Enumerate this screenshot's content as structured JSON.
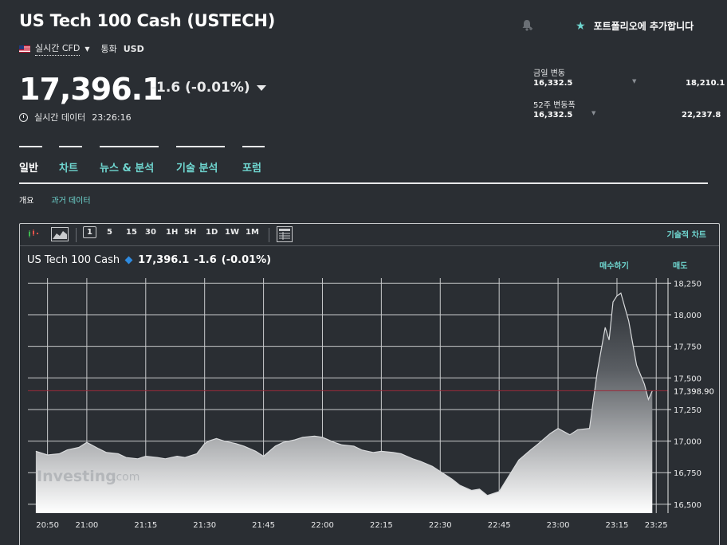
{
  "header": {
    "title": "US Tech 100 Cash (USTECH)",
    "market_type": "실시간 CFD",
    "currency_label": "통화",
    "currency": "USD",
    "price": "17,396.1",
    "change": "-1.6 (-0.01%)",
    "realtime_label": "실시간 데이터",
    "time": "23:26:16",
    "add_portfolio": "포트폴리오에 추가합니다"
  },
  "ranges": {
    "day": {
      "label": "금일 변동",
      "low": "16,332.5",
      "high": "18,210.1"
    },
    "week52": {
      "label": "52주 변동폭",
      "low": "16,332.5",
      "high": "22,237.8"
    }
  },
  "tabs": [
    {
      "label": "일반",
      "active": true
    },
    {
      "label": "차트",
      "active": false
    },
    {
      "label": "뉴스 & 분석",
      "active": false
    },
    {
      "label": "기술 분석",
      "active": false
    },
    {
      "label": "포럼",
      "active": false
    }
  ],
  "subtabs": {
    "overview": "개요",
    "historical": "과거 데이터"
  },
  "toolbar": {
    "intervals": [
      "1",
      "5",
      "15",
      "30",
      "1H",
      "5H",
      "1D",
      "1W",
      "1M"
    ],
    "selected_interval": "1",
    "tech_chart": "기술적 차트"
  },
  "chart_header": {
    "name": "US Tech 100 Cash",
    "price": "17,396.1",
    "change": "-1.6",
    "change_pct": "(-0.01%)",
    "buy": "매수하기",
    "sell": "매도"
  },
  "watermark": "Investing",
  "watermark_suffix": ".com",
  "colors": {
    "background": "#2a2e33",
    "accent": "#6fd6d0",
    "text": "#e8e9ea",
    "current_price_line": "#9b2a3a",
    "diamond": "#2f8be0"
  },
  "chart_data": {
    "type": "area",
    "x": [
      "20:47",
      "20:50",
      "20:53",
      "20:55",
      "20:58",
      "21:00",
      "21:03",
      "21:05",
      "21:08",
      "21:10",
      "21:13",
      "21:15",
      "21:18",
      "21:20",
      "21:23",
      "21:25",
      "21:28",
      "21:30",
      "21:31",
      "21:33",
      "21:35",
      "21:38",
      "21:40",
      "21:43",
      "21:45",
      "21:48",
      "21:50",
      "21:53",
      "21:55",
      "21:58",
      "22:00",
      "22:03",
      "22:05",
      "22:08",
      "22:10",
      "22:13",
      "22:15",
      "22:18",
      "22:20",
      "22:23",
      "22:25",
      "22:28",
      "22:30",
      "22:33",
      "22:35",
      "22:38",
      "22:40",
      "22:42",
      "22:45",
      "22:47",
      "22:50",
      "22:53",
      "22:55",
      "22:58",
      "23:00",
      "23:03",
      "23:05",
      "23:08",
      "23:10",
      "23:12",
      "23:13",
      "23:14",
      "23:15",
      "23:16",
      "23:18",
      "23:20",
      "23:22",
      "23:23",
      "23:24"
    ],
    "y": [
      16920,
      16890,
      16900,
      16930,
      16950,
      16990,
      16940,
      16910,
      16900,
      16870,
      16860,
      16880,
      16870,
      16860,
      16880,
      16870,
      16900,
      16980,
      17000,
      17020,
      17000,
      16980,
      16960,
      16920,
      16880,
      16960,
      16990,
      17010,
      17030,
      17040,
      17030,
      16990,
      16970,
      16960,
      16930,
      16910,
      16920,
      16910,
      16900,
      16860,
      16840,
      16800,
      16760,
      16700,
      16650,
      16610,
      16620,
      16570,
      16600,
      16700,
      16850,
      16930,
      16980,
      17060,
      17100,
      17050,
      17090,
      17100,
      17550,
      17900,
      17800,
      18100,
      18150,
      18170,
      17950,
      17600,
      17450,
      17330,
      17398
    ],
    "xticks": [
      "20:50",
      "21:00",
      "21:15",
      "21:30",
      "21:45",
      "22:00",
      "22:15",
      "22:30",
      "22:45",
      "23:00",
      "23:15",
      "23:25"
    ],
    "yticks": [
      16500,
      16750,
      17000,
      17250,
      17500,
      17750,
      18000,
      18250
    ],
    "ytick_labels": [
      "16,500",
      "16,750",
      "17,000",
      "17,250",
      "17,500",
      "17,750",
      "18,000",
      "18,250"
    ],
    "ylim": [
      16430,
      18290
    ],
    "current_value": 17398.9,
    "current_label": "17,398.90",
    "grid": true
  }
}
